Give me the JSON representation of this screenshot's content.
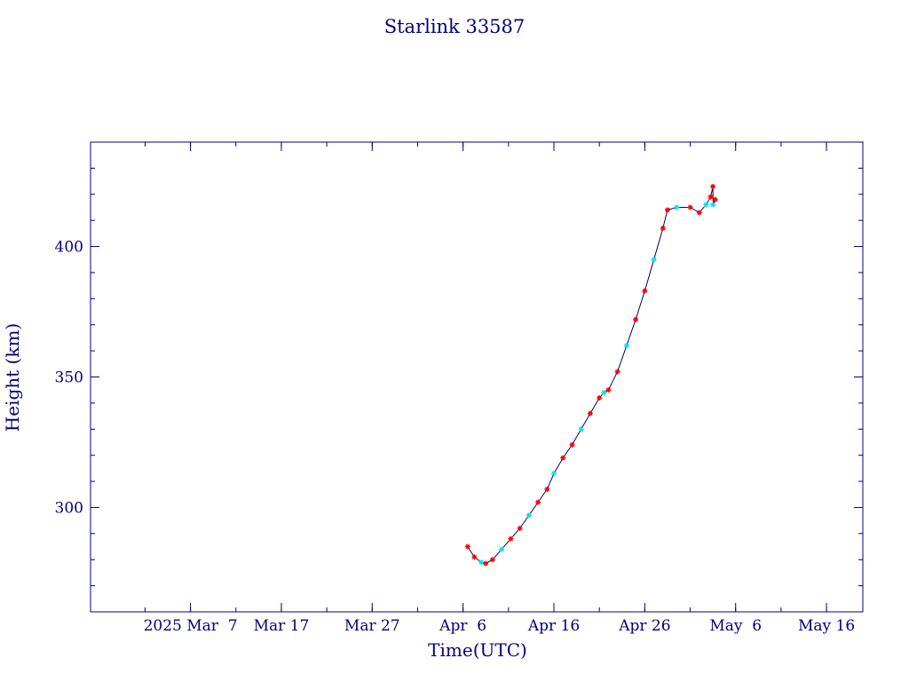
{
  "chart_data": {
    "type": "line",
    "title": "Starlink 33587",
    "xlabel": "Time(UTC)",
    "ylabel": "Height (km)",
    "x_tick_labels": [
      "2025 Mar  7",
      "Mar 17",
      "Mar 27",
      "Apr  6",
      "Apr 16",
      "Apr 26",
      "May  6",
      "May 16"
    ],
    "x_tick_dates": [
      "2025-03-07",
      "2025-03-17",
      "2025-03-27",
      "2025-04-06",
      "2025-04-16",
      "2025-04-26",
      "2025-05-06",
      "2025-05-16"
    ],
    "y_tick_labels": [
      "300",
      "350",
      "400"
    ],
    "y_tick_values": [
      300,
      350,
      400
    ],
    "xlim": [
      "2025-02-24",
      "2025-05-20"
    ],
    "ylim": [
      260,
      440
    ],
    "grid": false,
    "series": [
      {
        "color": "#000080",
        "marker": "asterisk",
        "points": [
          {
            "x": "2025-04-06 12:00",
            "y": 285
          },
          {
            "x": "2025-04-07 06:00",
            "y": 281
          },
          {
            "x": "2025-04-08 00:00",
            "y": 279
          },
          {
            "x": "2025-04-08 12:00",
            "y": 278.5
          },
          {
            "x": "2025-04-09 06:00",
            "y": 280
          },
          {
            "x": "2025-04-10 06:00",
            "y": 284
          },
          {
            "x": "2025-04-11 06:00",
            "y": 288
          },
          {
            "x": "2025-04-12 06:00",
            "y": 292
          },
          {
            "x": "2025-04-13 06:00",
            "y": 297
          },
          {
            "x": "2025-04-14 06:00",
            "y": 302
          },
          {
            "x": "2025-04-15 06:00",
            "y": 307
          },
          {
            "x": "2025-04-16 00:00",
            "y": 313
          },
          {
            "x": "2025-04-17 00:00",
            "y": 319
          },
          {
            "x": "2025-04-18 00:00",
            "y": 324
          },
          {
            "x": "2025-04-19 00:00",
            "y": 330
          },
          {
            "x": "2025-04-20 00:00",
            "y": 336
          },
          {
            "x": "2025-04-21 00:00",
            "y": 342
          },
          {
            "x": "2025-04-21 12:00",
            "y": 344
          },
          {
            "x": "2025-04-22 00:00",
            "y": 345
          },
          {
            "x": "2025-04-23 00:00",
            "y": 352
          },
          {
            "x": "2025-04-24 00:00",
            "y": 362
          },
          {
            "x": "2025-04-25 00:00",
            "y": 372
          },
          {
            "x": "2025-04-26 00:00",
            "y": 383
          },
          {
            "x": "2025-04-27 00:00",
            "y": 395
          },
          {
            "x": "2025-04-28 00:00",
            "y": 407
          },
          {
            "x": "2025-04-28 12:00",
            "y": 414
          },
          {
            "x": "2025-04-29 12:00",
            "y": 415
          },
          {
            "x": "2025-05-01 00:00",
            "y": 415
          },
          {
            "x": "2025-05-02 00:00",
            "y": 413
          },
          {
            "x": "2025-05-02 18:00",
            "y": 416
          },
          {
            "x": "2025-05-03 06:00",
            "y": 419
          },
          {
            "x": "2025-05-03 12:00",
            "y": 423
          },
          {
            "x": "2025-05-03 12:30",
            "y": 416
          },
          {
            "x": "2025-05-03 18:00",
            "y": 418
          }
        ]
      }
    ]
  },
  "colors": {
    "axis": "#000080",
    "text": "#000080",
    "line": "#000080",
    "marker_primary": "#ff0000",
    "marker_secondary": "#00e5ee"
  }
}
